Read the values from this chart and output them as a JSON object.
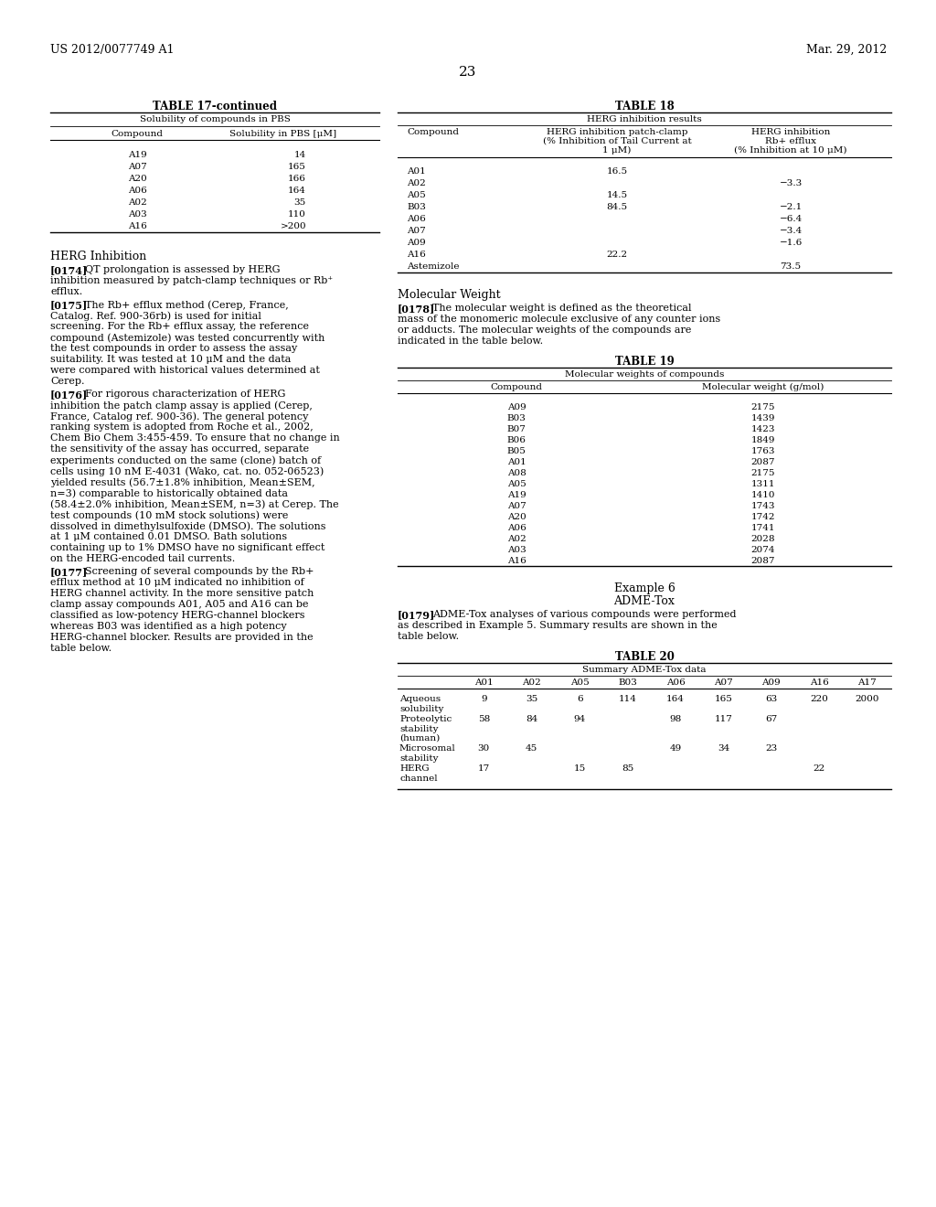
{
  "header_left": "US 2012/0077749 A1",
  "header_right": "Mar. 29, 2012",
  "page_number": "23",
  "background_color": "#ffffff",
  "text_color": "#000000",
  "table17_title": "TABLE 17-continued",
  "table17_subtitle": "Solubility of compounds in PBS",
  "table17_col1": "Compound",
  "table17_col2": "Solubility in PBS [μM]",
  "table17_rows": [
    [
      "A19",
      "14"
    ],
    [
      "A07",
      "165"
    ],
    [
      "A20",
      "166"
    ],
    [
      "A06",
      "164"
    ],
    [
      "A02",
      "35"
    ],
    [
      "A03",
      "110"
    ],
    [
      "A16",
      ">200"
    ]
  ],
  "herg_inhibition_heading": "HERG Inhibition",
  "para_0174_label": "[0174]",
  "para_0174_text": "QT prolongation is assessed by HERG inhibition measured by patch-clamp techniques or Rb⁺ efflux.",
  "para_0175_label": "[0175]",
  "para_0175_text": "The Rb+ efflux method (Cerep, France, Catalog. Ref. 900-36rb) is used for initial screening. For the Rb+ efflux assay, the reference compound (Astemizole) was tested concurrently with the test compounds in order to assess the assay suitability. It was tested at 10 μM and the data were compared with historical values determined at Cerep.",
  "para_0176_label": "[0176]",
  "para_0176_text": "For rigorous characterization of HERG inhibition the patch clamp assay is applied (Cerep, France, Catalog ref. 900-36). The general potency ranking system is adopted from Roche et al., 2002, Chem Bio Chem 3:455-459. To ensure that no change in the sensitivity of the assay has occurred, separate experiments conducted on the same (clone) batch of cells using 10 nM E-4031 (Wako, cat. no. 052-06523) yielded results (56.7±1.8% inhibition, Mean±SEM, n=3) comparable to historically obtained data (58.4±2.0% inhibition, Mean±SEM, n=3) at Cerep. The test compounds (10 mM stock solutions) were dissolved in dimethylsulfoxide (DMSO). The solutions at 1 μM contained 0.01 DMSO. Bath solutions containing up to 1% DMSO have no significant effect on the HERG-encoded tail currents.",
  "para_0177_label": "[0177]",
  "para_0177_text": "Screening of several compounds by the Rb+ efflux method at 10 μM indicated no inhibition of HERG channel activity. In the more sensitive patch clamp assay compounds A01, A05 and A16 can be classified as low-potency HERG-channel blockers whereas B03 was identified as a high potency HERG-channel blocker. Results are provided in the table below.",
  "table18_title": "TABLE 18",
  "table18_subtitle": "HERG inhibition results",
  "table18_col1": "Compound",
  "table18_col2a": "HERG inhibition patch-clamp",
  "table18_col2b": "(% Inhibition of Tail Current at",
  "table18_col2c": "1 μM)",
  "table18_col3a": "HERG inhibition",
  "table18_col3b": "Rb+ efflux",
  "table18_col3c": "(% Inhibition at 10 μM)",
  "table18_rows": [
    [
      "A01",
      "16.5",
      ""
    ],
    [
      "A02",
      "",
      "−3.3"
    ],
    [
      "A05",
      "14.5",
      ""
    ],
    [
      "B03",
      "84.5",
      "−2.1"
    ],
    [
      "A06",
      "",
      "−6.4"
    ],
    [
      "A07",
      "",
      "−3.4"
    ],
    [
      "A09",
      "",
      "−1.6"
    ],
    [
      "A16",
      "22.2",
      ""
    ],
    [
      "Astemizole",
      "",
      "73.5"
    ]
  ],
  "mol_weight_heading": "Molecular Weight",
  "para_0178_label": "[0178]",
  "para_0178_text": "The molecular weight is defined as the theoretical mass of the monomeric molecule exclusive of any counter ions or adducts. The molecular weights of the compounds are indicated in the table below.",
  "table19_title": "TABLE 19",
  "table19_subtitle": "Molecular weights of compounds",
  "table19_col1": "Compound",
  "table19_col2": "Molecular weight (g/mol)",
  "table19_rows": [
    [
      "A09",
      "2175"
    ],
    [
      "B03",
      "1439"
    ],
    [
      "B07",
      "1423"
    ],
    [
      "B06",
      "1849"
    ],
    [
      "B05",
      "1763"
    ],
    [
      "A01",
      "2087"
    ],
    [
      "A08",
      "2175"
    ],
    [
      "A05",
      "1311"
    ],
    [
      "A19",
      "1410"
    ],
    [
      "A07",
      "1743"
    ],
    [
      "A20",
      "1742"
    ],
    [
      "A06",
      "1741"
    ],
    [
      "A02",
      "2028"
    ],
    [
      "A03",
      "2074"
    ],
    [
      "A16",
      "2087"
    ]
  ],
  "example6_heading": "Example 6",
  "adme_tox_heading": "ADME-Tox",
  "para_0179_label": "[0179]",
  "para_0179_text": "ADME-Tox analyses of various compounds were performed as described in Example 5. Summary results are shown in the table below.",
  "table20_title": "TABLE 20",
  "table20_subtitle": "Summary ADME-Tox data",
  "table20_cols": [
    "",
    "A01",
    "A02",
    "A05",
    "B03",
    "A06",
    "A07",
    "A09",
    "A16",
    "A17"
  ],
  "table20_rows": [
    [
      "Aqueous\nsolubility",
      "9",
      "35",
      "6",
      "114",
      "164",
      "165",
      "63",
      "220",
      "2000"
    ],
    [
      "Proteolytic\nstability\n(human)",
      "58",
      "84",
      "94",
      "",
      "98",
      "117",
      "67",
      "",
      ""
    ],
    [
      "Microsomal\nstability",
      "30",
      "45",
      "",
      "",
      "49",
      "34",
      "23",
      "",
      ""
    ],
    [
      "HERG\nchannel",
      "17",
      "",
      "15",
      "85",
      "",
      "",
      "",
      "22",
      ""
    ]
  ]
}
